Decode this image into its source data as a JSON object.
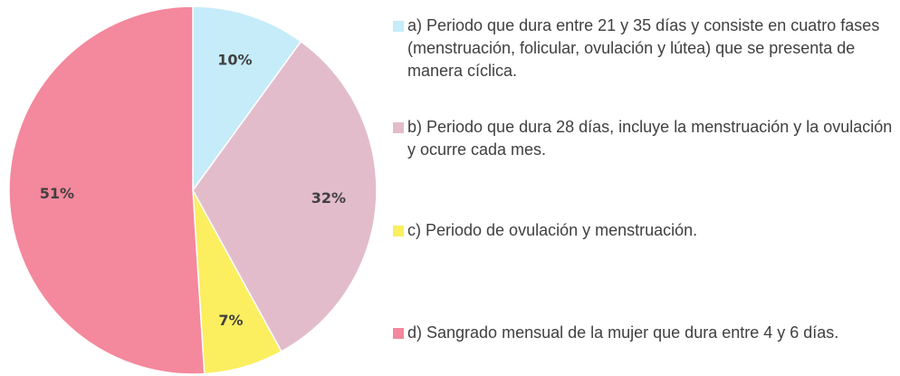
{
  "chart_data": {
    "type": "pie",
    "categories": [
      "a) Periodo que dura entre 21 y 35 días y consiste en cuatro fases (menstruación, folicular, ovulación y lútea) que se presenta de manera cíclica.",
      "b) Periodo que dura 28 días, incluye la menstruación y la ovulación y ocurre cada mes.",
      "c) Periodo de ovulación y menstruación.",
      "d) Sangrado mensual de la mujer que dura entre 4 y 6 días."
    ],
    "values": [
      10,
      32,
      7,
      51
    ],
    "value_labels": [
      "10%",
      "32%",
      "7%",
      "51%"
    ],
    "colors": [
      "#c5ecf8",
      "#e3bccb",
      "#fbee5f",
      "#f4889c"
    ],
    "legend": "right"
  }
}
